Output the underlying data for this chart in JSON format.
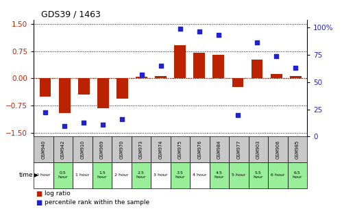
{
  "title": "GDS39 / 1463",
  "samples": [
    "GSM940",
    "GSM942",
    "GSM910",
    "GSM969",
    "GSM970",
    "GSM973",
    "GSM974",
    "GSM975",
    "GSM976",
    "GSM984",
    "GSM977",
    "GSM903",
    "GSM906",
    "GSM985"
  ],
  "time_labels": [
    "0 hour",
    "0.5\nhour",
    "1 hour",
    "1.5\nhour",
    "2 hour",
    "2.5\nhour",
    "3 hour",
    "3.5\nhour",
    "4 hour",
    "4.5\nhour",
    "5 hour",
    "5.5\nhour",
    "6 hour",
    "6.5\nhour"
  ],
  "log_ratio": [
    -0.5,
    -0.95,
    -0.45,
    -0.82,
    -0.55,
    0.04,
    0.07,
    0.92,
    0.7,
    0.65,
    -0.23,
    0.52,
    0.13,
    0.06
  ],
  "percentile": [
    22,
    10,
    13,
    11,
    16,
    57,
    65,
    99,
    96,
    93,
    20,
    86,
    74,
    63
  ],
  "ylim_left": [
    -1.6,
    1.6
  ],
  "ylim_right": [
    0,
    106.67
  ],
  "yticks_left": [
    -1.5,
    -0.75,
    0,
    0.75,
    1.5
  ],
  "yticks_right": [
    0,
    25,
    50,
    75,
    100
  ],
  "bar_color": "#bb2200",
  "dot_color": "#2222cc",
  "hline_color": "#cc2200",
  "grid_color": "#111111",
  "bg_color": "#ffffff",
  "table_header_bg": "#c8c8c8",
  "table_row_bgs": [
    "#ffffff",
    "#99ee99",
    "#ffffff",
    "#99ee99",
    "#ffffff",
    "#99ee99",
    "#ffffff",
    "#99ee99",
    "#ffffff",
    "#99ee99",
    "#99ee99",
    "#99ee99",
    "#99ee99",
    "#99ee99"
  ],
  "legend_log_ratio": "log ratio",
  "legend_percentile": "percentile rank within the sample",
  "time_arrow_label": "time"
}
